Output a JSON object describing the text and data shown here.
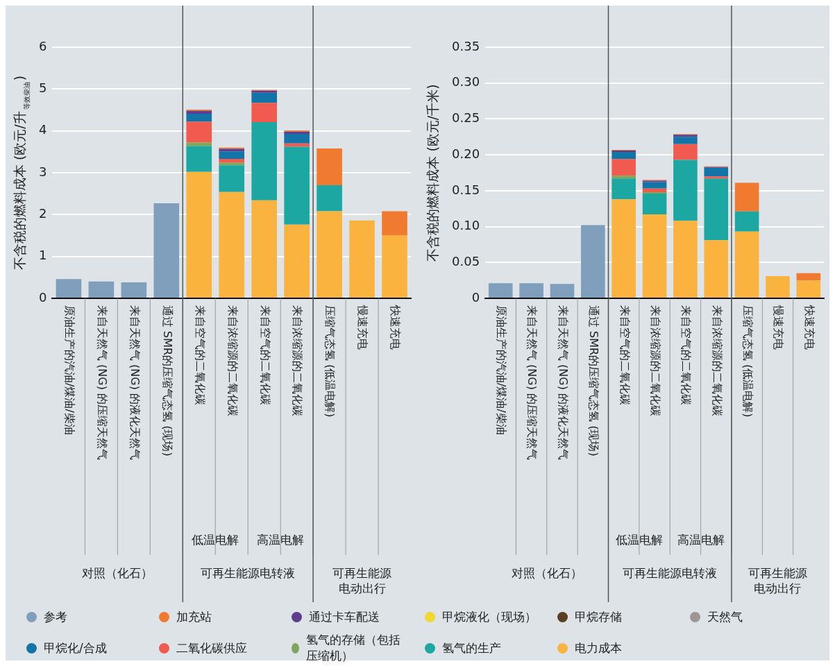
{
  "chart_data": [
    {
      "type": "bar",
      "stacked": true,
      "ylabel": "不含税的燃料成本 (欧元/升$_{等效柴油}$)",
      "categories": [
        "原油生产的汽油/煤油/柴油",
        "来自天然气 (NG) 的压缩天然气",
        "来自天然气 (NG) 的液化天然气",
        "通过 SMR的压缩气态氢 (现场)",
        "来自空气的二氧化碳",
        "来自浓缩源的二氧化碳",
        "来自空气的二氧化碳",
        "来自浓缩源的二氧化碳",
        "压缩气态氢 (低温电解)",
        "慢速充电",
        "快速充电"
      ],
      "series": [
        {
          "name": "电力成本",
          "color": "#fbb340",
          "values": [
            null,
            null,
            null,
            null,
            3.02,
            2.54,
            2.34,
            1.76,
            2.08,
            1.86,
            1.51
          ]
        },
        {
          "name": "氢气的生产",
          "color": "#1ca7a3",
          "values": [
            null,
            null,
            null,
            null,
            0.62,
            0.64,
            1.87,
            1.86,
            0.62,
            null,
            null
          ]
        },
        {
          "name": "氢气的存储（包括压缩机）",
          "color": "#80a659",
          "values": [
            null,
            null,
            null,
            null,
            0.08,
            0.06,
            null,
            null,
            null,
            null,
            null
          ]
        },
        {
          "name": "二氧化碳供应",
          "color": "#f05a4f",
          "values": [
            null,
            null,
            null,
            null,
            0.5,
            0.09,
            0.46,
            0.08,
            null,
            null,
            null
          ]
        },
        {
          "name": "甲烷化/合成",
          "color": "#1374a8",
          "values": [
            null,
            null,
            null,
            null,
            0.19,
            0.18,
            0.24,
            0.23,
            null,
            null,
            null
          ]
        },
        {
          "name": "天然气",
          "color": "#a19496",
          "values": [
            null,
            null,
            null,
            null,
            null,
            null,
            null,
            null,
            null,
            null,
            null
          ]
        },
        {
          "name": "甲烷存储",
          "color": "#5a3f22",
          "values": [
            null,
            null,
            null,
            null,
            null,
            null,
            null,
            null,
            null,
            null,
            null
          ]
        },
        {
          "name": "甲烷液化（现场）",
          "color": "#f0d830",
          "values": [
            null,
            null,
            null,
            null,
            null,
            null,
            null,
            null,
            null,
            null,
            null
          ]
        },
        {
          "name": "通过卡车配送",
          "color": "#5e3d8f",
          "values": [
            null,
            null,
            null,
            null,
            0.07,
            0.06,
            0.05,
            0.05,
            null,
            null,
            null
          ]
        },
        {
          "name": "加充站",
          "color": "#f07a30",
          "values": [
            null,
            null,
            null,
            null,
            0.03,
            0.03,
            0.02,
            0.03,
            0.88,
            null,
            0.57
          ]
        },
        {
          "name": "参考",
          "color": "#7f9fbc",
          "values": [
            0.46,
            0.4,
            0.38,
            2.27,
            null,
            null,
            null,
            null,
            null,
            null,
            null
          ]
        }
      ],
      "ylim": [
        0,
        6
      ],
      "yticks": [
        0,
        1,
        2,
        3,
        4,
        5,
        6
      ],
      "grid": "y",
      "legend": "bottom",
      "annotations": [
        "低温电解",
        "高温电解",
        "对照（化石）",
        "可再生能源电转液",
        "可再生能源",
        "电动出行"
      ]
    },
    {
      "type": "bar",
      "stacked": true,
      "ylabel": "不含税的燃料成本 (欧元/千米)",
      "categories": [
        "原油生产的汽油/煤油/柴油",
        "来自天然气 (NG) 的压缩天然气",
        "来自天然气 (NG) 的液化天然气",
        "通过 SMR的压缩气态氢 (现场)",
        "来自空气的二氧化碳",
        "来自浓缩源的二氧化碳",
        "来自空气的二氧化碳",
        "来自浓缩源的二氧化碳",
        "压缩气态氢 (低温电解)",
        "慢速充电",
        "快速充电"
      ],
      "series": [
        {
          "color": "#fbb340",
          "values": [
            null,
            null,
            null,
            null,
            0.138,
            0.117,
            0.108,
            0.081,
            0.093,
            0.031,
            0.025
          ]
        },
        {
          "color": "#1ca7a3",
          "values": [
            null,
            null,
            null,
            null,
            0.029,
            0.029,
            0.085,
            0.086,
            0.028,
            null,
            null
          ]
        },
        {
          "color": "#80a659",
          "values": [
            null,
            null,
            null,
            null,
            0.004,
            0.002,
            null,
            null,
            null,
            null,
            null
          ]
        },
        {
          "color": "#f05a4f",
          "values": [
            null,
            null,
            null,
            null,
            0.023,
            0.005,
            0.022,
            0.003,
            null,
            null,
            null
          ]
        },
        {
          "color": "#1374a8",
          "values": [
            null,
            null,
            null,
            null,
            0.01,
            0.009,
            0.01,
            0.012,
            null,
            null,
            null
          ]
        },
        {
          "color": "#5e3d8f",
          "values": [
            null,
            null,
            null,
            null,
            0.002,
            0.002,
            0.003,
            0.001,
            null,
            null,
            null
          ]
        },
        {
          "color": "#f07a30",
          "values": [
            null,
            null,
            null,
            null,
            0.001,
            0.001,
            0.001,
            0.001,
            0.04,
            null,
            0.01
          ]
        },
        {
          "color": "#7f9fbc",
          "values": [
            0.021,
            0.021,
            0.02,
            0.102,
            null,
            null,
            null,
            null,
            null,
            null,
            null
          ]
        }
      ],
      "ylim": [
        0,
        0.35
      ],
      "yticks": [
        0,
        0.05,
        {
          "value": 0.1,
          "label": "0.10"
        },
        0.15,
        {
          "value": 0.2,
          "label": "0.20"
        },
        0.25,
        {
          "value": 0.3,
          "label": "0.30"
        },
        0.35
      ],
      "grid": "y",
      "annotations": [
        "低温电解",
        "高温电解",
        "对照（化石）",
        "可再生能源电转液",
        "可再生能源",
        "电动出行"
      ]
    }
  ]
}
